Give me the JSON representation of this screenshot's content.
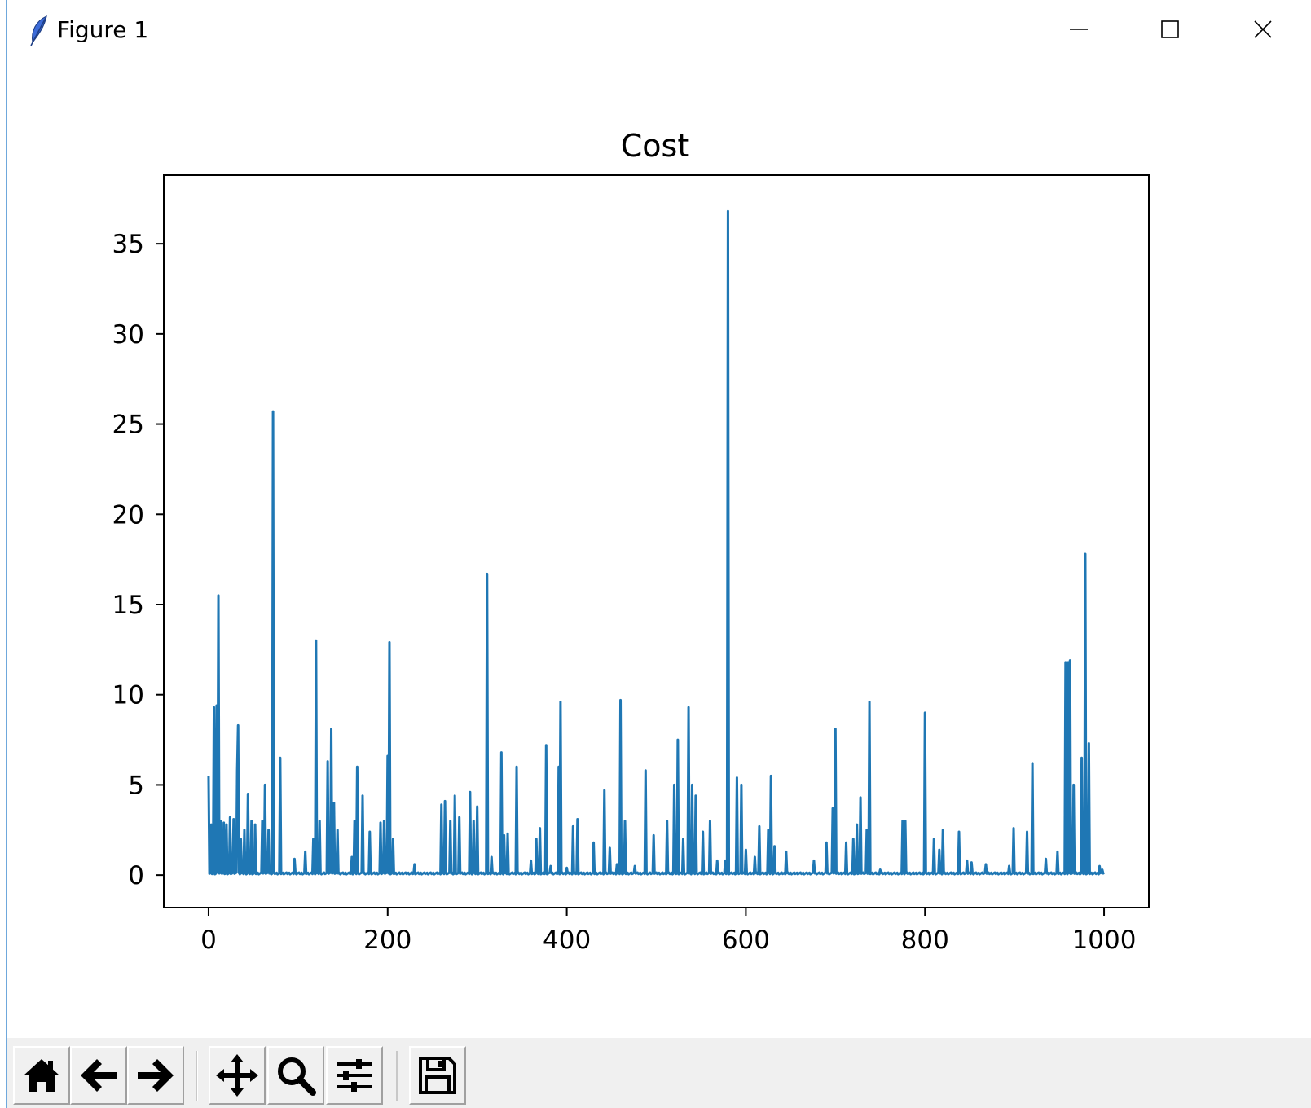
{
  "window": {
    "title": "Figure 1",
    "app_icon": "feather-icon",
    "controls": [
      "minimize-icon",
      "maximize-icon",
      "close-icon"
    ]
  },
  "toolbar": {
    "buttons": [
      "home-icon",
      "back-arrow-icon",
      "forward-arrow-icon",
      "pan-icon",
      "zoom-icon",
      "configure-subplots-icon",
      "save-icon"
    ]
  },
  "colors": {
    "line": "#1f77b4",
    "toolbar_bg": "#f0f0f0",
    "axes_edge": "#000000"
  },
  "chart_data": {
    "type": "line",
    "title": "Cost",
    "xlabel": "",
    "ylabel": "",
    "xlim": [
      -50,
      1050
    ],
    "ylim": [
      -1.8,
      38.8
    ],
    "xticks": [
      0,
      200,
      400,
      600,
      800,
      1000
    ],
    "yticks": [
      0,
      5,
      10,
      15,
      20,
      25,
      30,
      35
    ],
    "grid": false,
    "baseline": 0.05,
    "peaks": [
      [
        0,
        5.5
      ],
      [
        3,
        2.8
      ],
      [
        6,
        9.3
      ],
      [
        9,
        9.4
      ],
      [
        11,
        15.5
      ],
      [
        14,
        3.0
      ],
      [
        17,
        2.9
      ],
      [
        20,
        2.8
      ],
      [
        24,
        3.2
      ],
      [
        28,
        3.1
      ],
      [
        32,
        5.8
      ],
      [
        33,
        8.3
      ],
      [
        36,
        2.0
      ],
      [
        40,
        2.5
      ],
      [
        44,
        4.5
      ],
      [
        48,
        3.0
      ],
      [
        52,
        2.8
      ],
      [
        60,
        3.0
      ],
      [
        63,
        5.0
      ],
      [
        67,
        2.5
      ],
      [
        72,
        25.7
      ],
      [
        80,
        6.5
      ],
      [
        96,
        0.9
      ],
      [
        108,
        1.3
      ],
      [
        117,
        2.0
      ],
      [
        120,
        13.0
      ],
      [
        124,
        3.0
      ],
      [
        133,
        6.3
      ],
      [
        137,
        8.1
      ],
      [
        140,
        4.0
      ],
      [
        144,
        2.5
      ],
      [
        160,
        1.0
      ],
      [
        163,
        3.0
      ],
      [
        166,
        6.0
      ],
      [
        172,
        4.4
      ],
      [
        180,
        2.4
      ],
      [
        192,
        2.9
      ],
      [
        196,
        3.0
      ],
      [
        200,
        6.6
      ],
      [
        202,
        12.9
      ],
      [
        206,
        2.0
      ],
      [
        230,
        0.6
      ],
      [
        260,
        3.9
      ],
      [
        264,
        4.1
      ],
      [
        270,
        3.0
      ],
      [
        275,
        4.4
      ],
      [
        280,
        3.2
      ],
      [
        292,
        4.6
      ],
      [
        296,
        3.0
      ],
      [
        300,
        3.8
      ],
      [
        311,
        16.7
      ],
      [
        316,
        1.0
      ],
      [
        327,
        6.8
      ],
      [
        330,
        2.2
      ],
      [
        334,
        2.3
      ],
      [
        344,
        6.0
      ],
      [
        360,
        0.8
      ],
      [
        366,
        2.0
      ],
      [
        370,
        2.6
      ],
      [
        377,
        7.2
      ],
      [
        382,
        0.5
      ],
      [
        391,
        6.0
      ],
      [
        393,
        9.6
      ],
      [
        400,
        0.4
      ],
      [
        407,
        2.7
      ],
      [
        412,
        3.1
      ],
      [
        430,
        1.8
      ],
      [
        442,
        4.7
      ],
      [
        448,
        1.5
      ],
      [
        456,
        0.6
      ],
      [
        460,
        9.7
      ],
      [
        465,
        3.0
      ],
      [
        476,
        0.5
      ],
      [
        488,
        5.8
      ],
      [
        497,
        2.2
      ],
      [
        512,
        3.0
      ],
      [
        520,
        5.0
      ],
      [
        524,
        7.5
      ],
      [
        530,
        2.0
      ],
      [
        536,
        9.3
      ],
      [
        540,
        5.0
      ],
      [
        544,
        4.4
      ],
      [
        552,
        2.4
      ],
      [
        560,
        3.0
      ],
      [
        568,
        0.8
      ],
      [
        577,
        0.8
      ],
      [
        580,
        36.8
      ],
      [
        590,
        5.4
      ],
      [
        595,
        5.0
      ],
      [
        600,
        1.4
      ],
      [
        610,
        1.0
      ],
      [
        615,
        2.7
      ],
      [
        625,
        2.5
      ],
      [
        628,
        5.5
      ],
      [
        632,
        1.6
      ],
      [
        645,
        1.3
      ],
      [
        676,
        0.8
      ],
      [
        690,
        1.8
      ],
      [
        697,
        3.7
      ],
      [
        700,
        8.1
      ],
      [
        712,
        1.8
      ],
      [
        720,
        2.0
      ],
      [
        724,
        2.8
      ],
      [
        728,
        4.3
      ],
      [
        735,
        2.5
      ],
      [
        738,
        9.6
      ],
      [
        750,
        0.3
      ],
      [
        775,
        3.0
      ],
      [
        778,
        3.0
      ],
      [
        800,
        9.0
      ],
      [
        810,
        2.0
      ],
      [
        816,
        1.4
      ],
      [
        820,
        2.5
      ],
      [
        838,
        2.4
      ],
      [
        847,
        0.8
      ],
      [
        852,
        0.7
      ],
      [
        868,
        0.6
      ],
      [
        894,
        0.5
      ],
      [
        899,
        2.6
      ],
      [
        914,
        2.4
      ],
      [
        920,
        6.2
      ],
      [
        935,
        0.9
      ],
      [
        948,
        1.3
      ],
      [
        957,
        11.8
      ],
      [
        960,
        11.8
      ],
      [
        962,
        11.9
      ],
      [
        966,
        5.0
      ],
      [
        975,
        6.5
      ],
      [
        979,
        17.8
      ],
      [
        983,
        7.3
      ],
      [
        995,
        0.5
      ],
      [
        998,
        0.3
      ]
    ]
  }
}
